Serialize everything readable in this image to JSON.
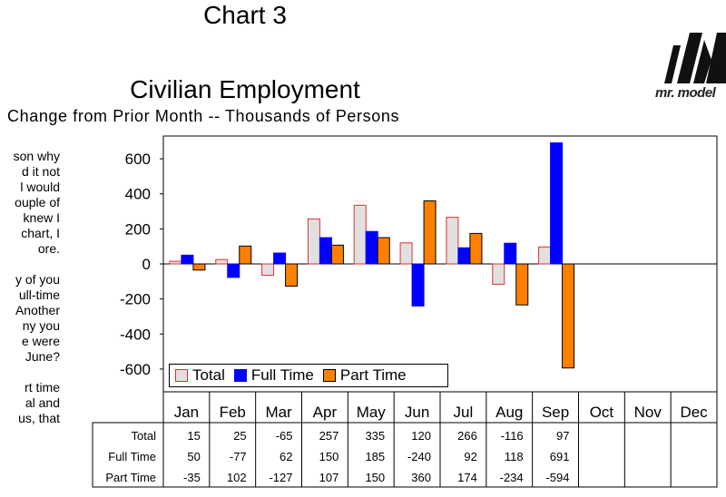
{
  "title_line1": "Chart 3",
  "title_line2": "Civilian Employment",
  "subtitle": "Change from Prior Month -- Thousands of Persons",
  "logo": {
    "text": "mr. model"
  },
  "side_text": [
    [
      "son why",
      "d it not",
      "l would",
      "ouple of",
      "knew I",
      "chart, I",
      "ore."
    ],
    [
      "y of you",
      "ull-time",
      "Another",
      "ny you",
      "e were",
      "June?"
    ],
    [
      "rt time",
      "al and",
      "us, that"
    ]
  ],
  "chart_data": {
    "type": "bar",
    "title": "Civilian Employment",
    "subtitle": "Change from Prior Month -- Thousands of Persons",
    "categories": [
      "Jan",
      "Feb",
      "Mar",
      "Apr",
      "May",
      "Jun",
      "Jul",
      "Aug",
      "Sep",
      "Oct",
      "Nov",
      "Dec"
    ],
    "series": [
      {
        "name": "Total",
        "values": [
          15,
          25,
          -65,
          257,
          335,
          120,
          266,
          -116,
          97,
          null,
          null,
          null
        ],
        "fill": "#e0e0e0",
        "stroke": "#e03030"
      },
      {
        "name": "Full Time",
        "values": [
          50,
          -77,
          62,
          150,
          185,
          -240,
          92,
          118,
          691,
          null,
          null,
          null
        ],
        "fill": "#0000ff",
        "stroke": "#0000ff"
      },
      {
        "name": "Part Time",
        "values": [
          -35,
          102,
          -127,
          107,
          150,
          360,
          174,
          -234,
          -594,
          null,
          null,
          null
        ],
        "fill": "#ff8000",
        "stroke": "#000000"
      }
    ],
    "yticks": [
      600,
      400,
      200,
      0,
      -200,
      -400,
      -600
    ],
    "ylim": [
      -730,
      730
    ],
    "grid": false,
    "legend_position": "bottom-left"
  },
  "table": {
    "row_labels": [
      "Total",
      "Full Time",
      "Part Time"
    ],
    "rows": [
      [
        "15",
        "25",
        "-65",
        "257",
        "335",
        "120",
        "266",
        "-116",
        "97",
        "",
        "",
        ""
      ],
      [
        "50",
        "-77",
        "62",
        "150",
        "185",
        "-240",
        "92",
        "118",
        "691",
        "",
        "",
        ""
      ],
      [
        "-35",
        "102",
        "-127",
        "107",
        "150",
        "360",
        "174",
        "-234",
        "-594",
        "",
        "",
        ""
      ]
    ]
  }
}
